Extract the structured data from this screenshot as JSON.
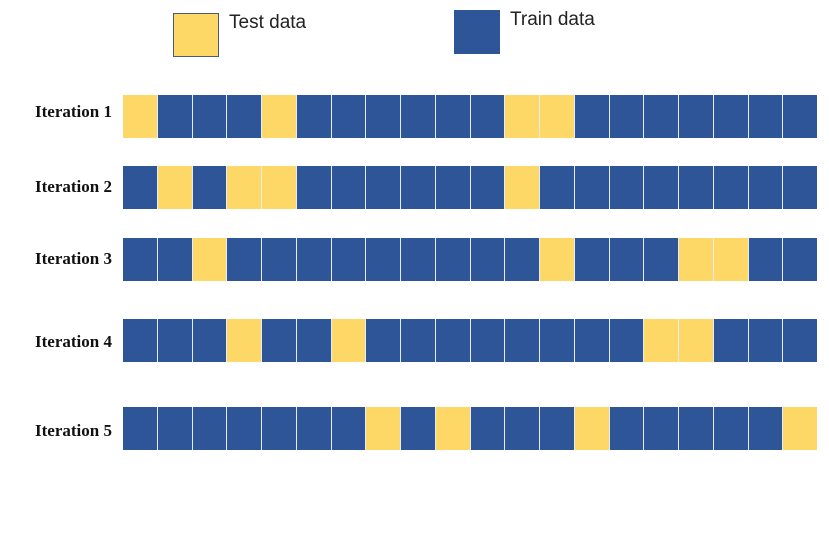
{
  "legend": {
    "test_label": "Test data",
    "train_label": "Train data"
  },
  "colors": {
    "test": "#fdd866",
    "train": "#2e5597"
  },
  "iterations": [
    {
      "label": "Iteration 1",
      "test_blocks": [
        1,
        5,
        12,
        13
      ]
    },
    {
      "label": "Iteration 2",
      "test_blocks": [
        2,
        4,
        5,
        12
      ]
    },
    {
      "label": "Iteration 3",
      "test_blocks": [
        3,
        13,
        17,
        18
      ]
    },
    {
      "label": "Iteration 4",
      "test_blocks": [
        4,
        7,
        16,
        17
      ]
    },
    {
      "label": "Iteration 5",
      "test_blocks": [
        8,
        10,
        14,
        20
      ]
    }
  ],
  "blocks_per_iteration": 20
}
